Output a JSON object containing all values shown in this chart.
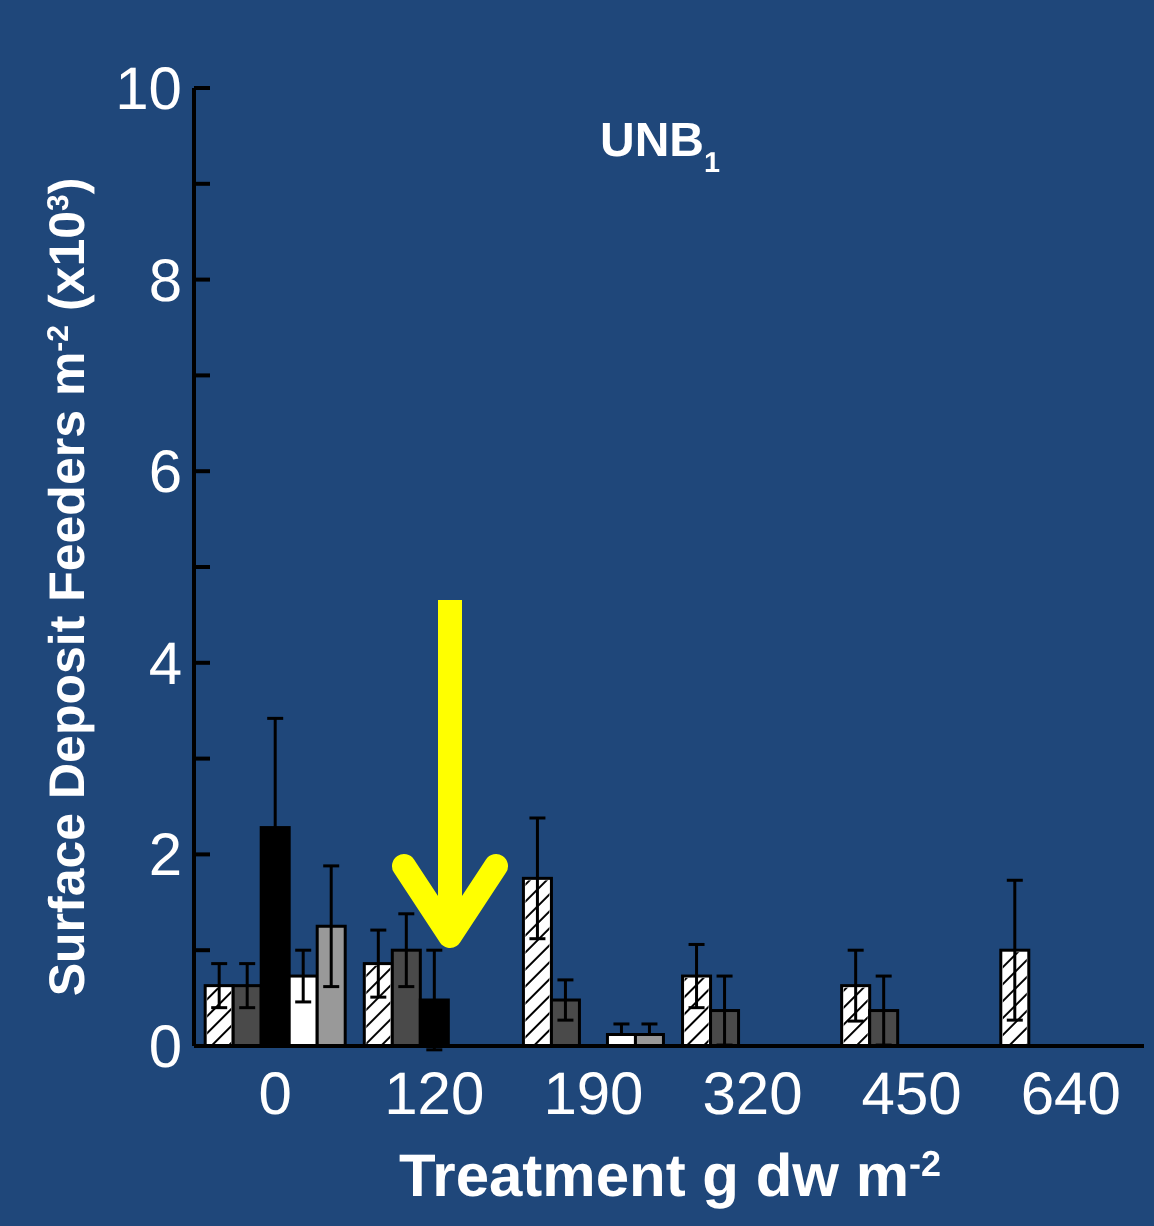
{
  "chart_data": {
    "type": "bar",
    "title": "UNB$_{1}$",
    "xlabel": "Treatment g dw m$^{-2}$",
    "ylabel": "Surface Deposit Feeders m$^{-2}$ (x10$^{3}$)",
    "categories": [
      "0",
      "120",
      "190",
      "320",
      "450",
      "640"
    ],
    "ylim": [
      0,
      10
    ],
    "yticks": [
      0,
      {
        "value": 1,
        "label": null
      },
      2,
      {
        "value": 3,
        "label": null
      },
      4,
      {
        "value": 5,
        "label": null
      },
      6,
      {
        "value": 7,
        "label": null
      },
      8,
      {
        "value": 9,
        "label": null
      },
      10
    ],
    "grid": false,
    "series": [
      {
        "color": "#ffffff",
        "values": [
          0.63,
          0.86,
          1.75,
          0.73,
          0.63,
          1.0
        ],
        "errors": [
          0.23,
          0.35,
          0.63,
          0.33,
          0.37,
          0.73
        ]
      },
      {
        "color": "#4a4a4a",
        "values": [
          0.63,
          1.0,
          0.48,
          0.37,
          0.37,
          null
        ],
        "errors": [
          0.23,
          0.38,
          0.21,
          0.36,
          0.36,
          null
        ]
      },
      {
        "color": "#000000",
        "values": [
          2.28,
          0.48,
          null,
          null,
          null,
          null
        ],
        "errors": [
          1.14,
          0.52,
          null,
          null,
          null,
          null
        ]
      },
      {
        "color": "#ffffff",
        "values": [
          0.73,
          null,
          0.12,
          null,
          null,
          null
        ],
        "errors": [
          0.27,
          null,
          [
            0.12,
            0.23
          ],
          null,
          null,
          null
        ]
      },
      {
        "color": "#999999",
        "values": [
          1.25,
          null,
          0.12,
          null,
          null,
          null
        ],
        "errors": [
          0.63,
          null,
          [
            0.12,
            0.23
          ],
          null,
          null,
          null
        ]
      }
    ]
  }
}
